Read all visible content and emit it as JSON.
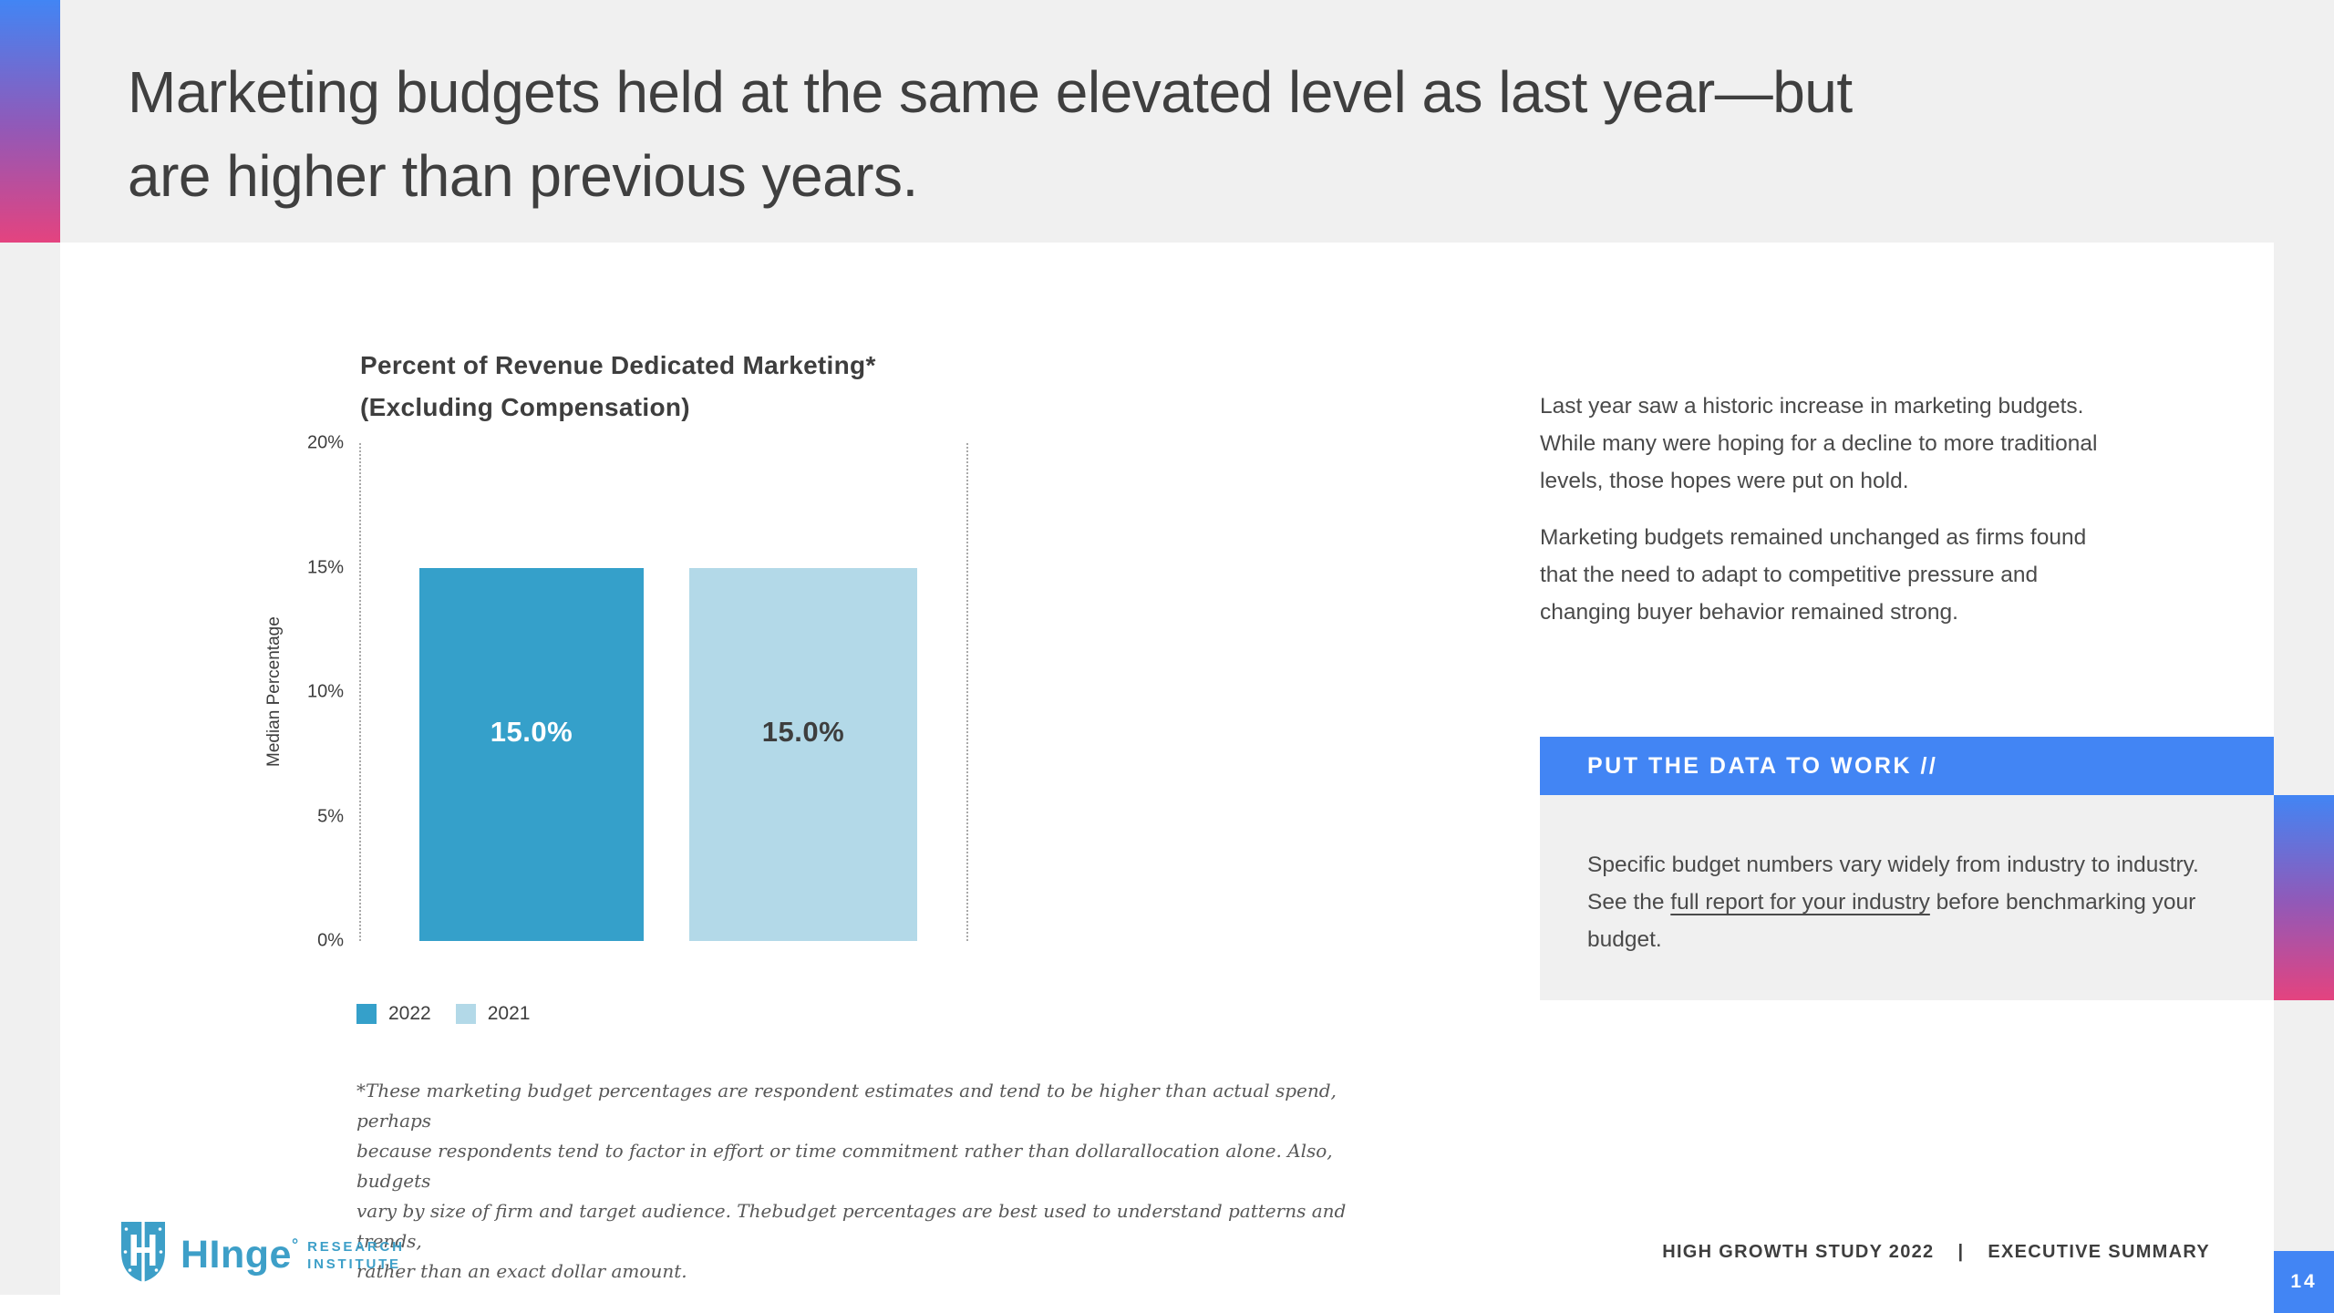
{
  "slide": {
    "title_lines": [
      "Marketing budgets held at the same elevated level as last year—but",
      "are higher than previous years."
    ],
    "page_number": "14"
  },
  "chart_data": {
    "type": "bar",
    "title_lines": [
      "Percent of Revenue Dedicated Marketing*",
      "(Excluding Compensation)"
    ],
    "ylabel": "Median Percentage",
    "ylim": [
      0,
      20
    ],
    "ytick_labels": [
      "20%",
      "15%",
      "10%",
      "5%",
      "0%"
    ],
    "grid": "none",
    "legend_position": "bottom-left",
    "categories": [
      "2022",
      "2021"
    ],
    "series": [
      {
        "name": "2022",
        "value": 15.0,
        "label": "15.0%",
        "color": "#35A0CA",
        "label_color": "#FFFFFF"
      },
      {
        "name": "2021",
        "value": 15.0,
        "label": "15.0%",
        "color": "#B3D9E8",
        "label_color": "#3E3E3E"
      }
    ],
    "footnote_lines": [
      "*These marketing budget percentages are respondent estimates and tend to be higher than actual spend, perhaps",
      "because respondents tend to factor in effort or time commitment rather than dollarallocation alone. Also, budgets",
      "vary by size of firm and target audience. Thebudget percentages are best used to understand patterns and trends,",
      "rather than an exact dollar amount."
    ]
  },
  "commentary": {
    "paragraphs": [
      {
        "lines": [
          "Last year saw a historic increase in marketing budgets.",
          "While many were hoping for a decline to more traditional",
          "levels, those hopes were put on hold."
        ]
      },
      {
        "lines": [
          "Marketing budgets remained unchanged as firms found",
          "that the need to adapt to competitive pressure and",
          "changing buyer behavior remained strong."
        ]
      }
    ]
  },
  "callout": {
    "banner_label": "PUT THE DATA TO WORK  //",
    "body_text_before": "Specific budget numbers vary widely from industry to industry. See the ",
    "body_link_text": "full report for your industry",
    "body_text_after": " before benchmarking your budget."
  },
  "footer": {
    "brand_wordmark": "HInge",
    "brand_mark": "°",
    "brand_sub_line1": "RESEARCH",
    "brand_sub_line2": "INSTITUTE",
    "study_label": "HIGH GROWTH STUDY 2022",
    "separator": "|",
    "section_label": "EXECUTIVE SUMMARY"
  },
  "colors": {
    "accent_blue": "#4285F4",
    "bar_2022": "#35A0CA",
    "bar_2021": "#B3D9E8",
    "logo_blue": "#3D9FC8",
    "gradient_top": "#4285F4",
    "gradient_mid": "#9159B8",
    "gradient_bottom": "#E4437F",
    "band_gray": "#F0F0F0",
    "title_text": "#3F3F3F"
  }
}
